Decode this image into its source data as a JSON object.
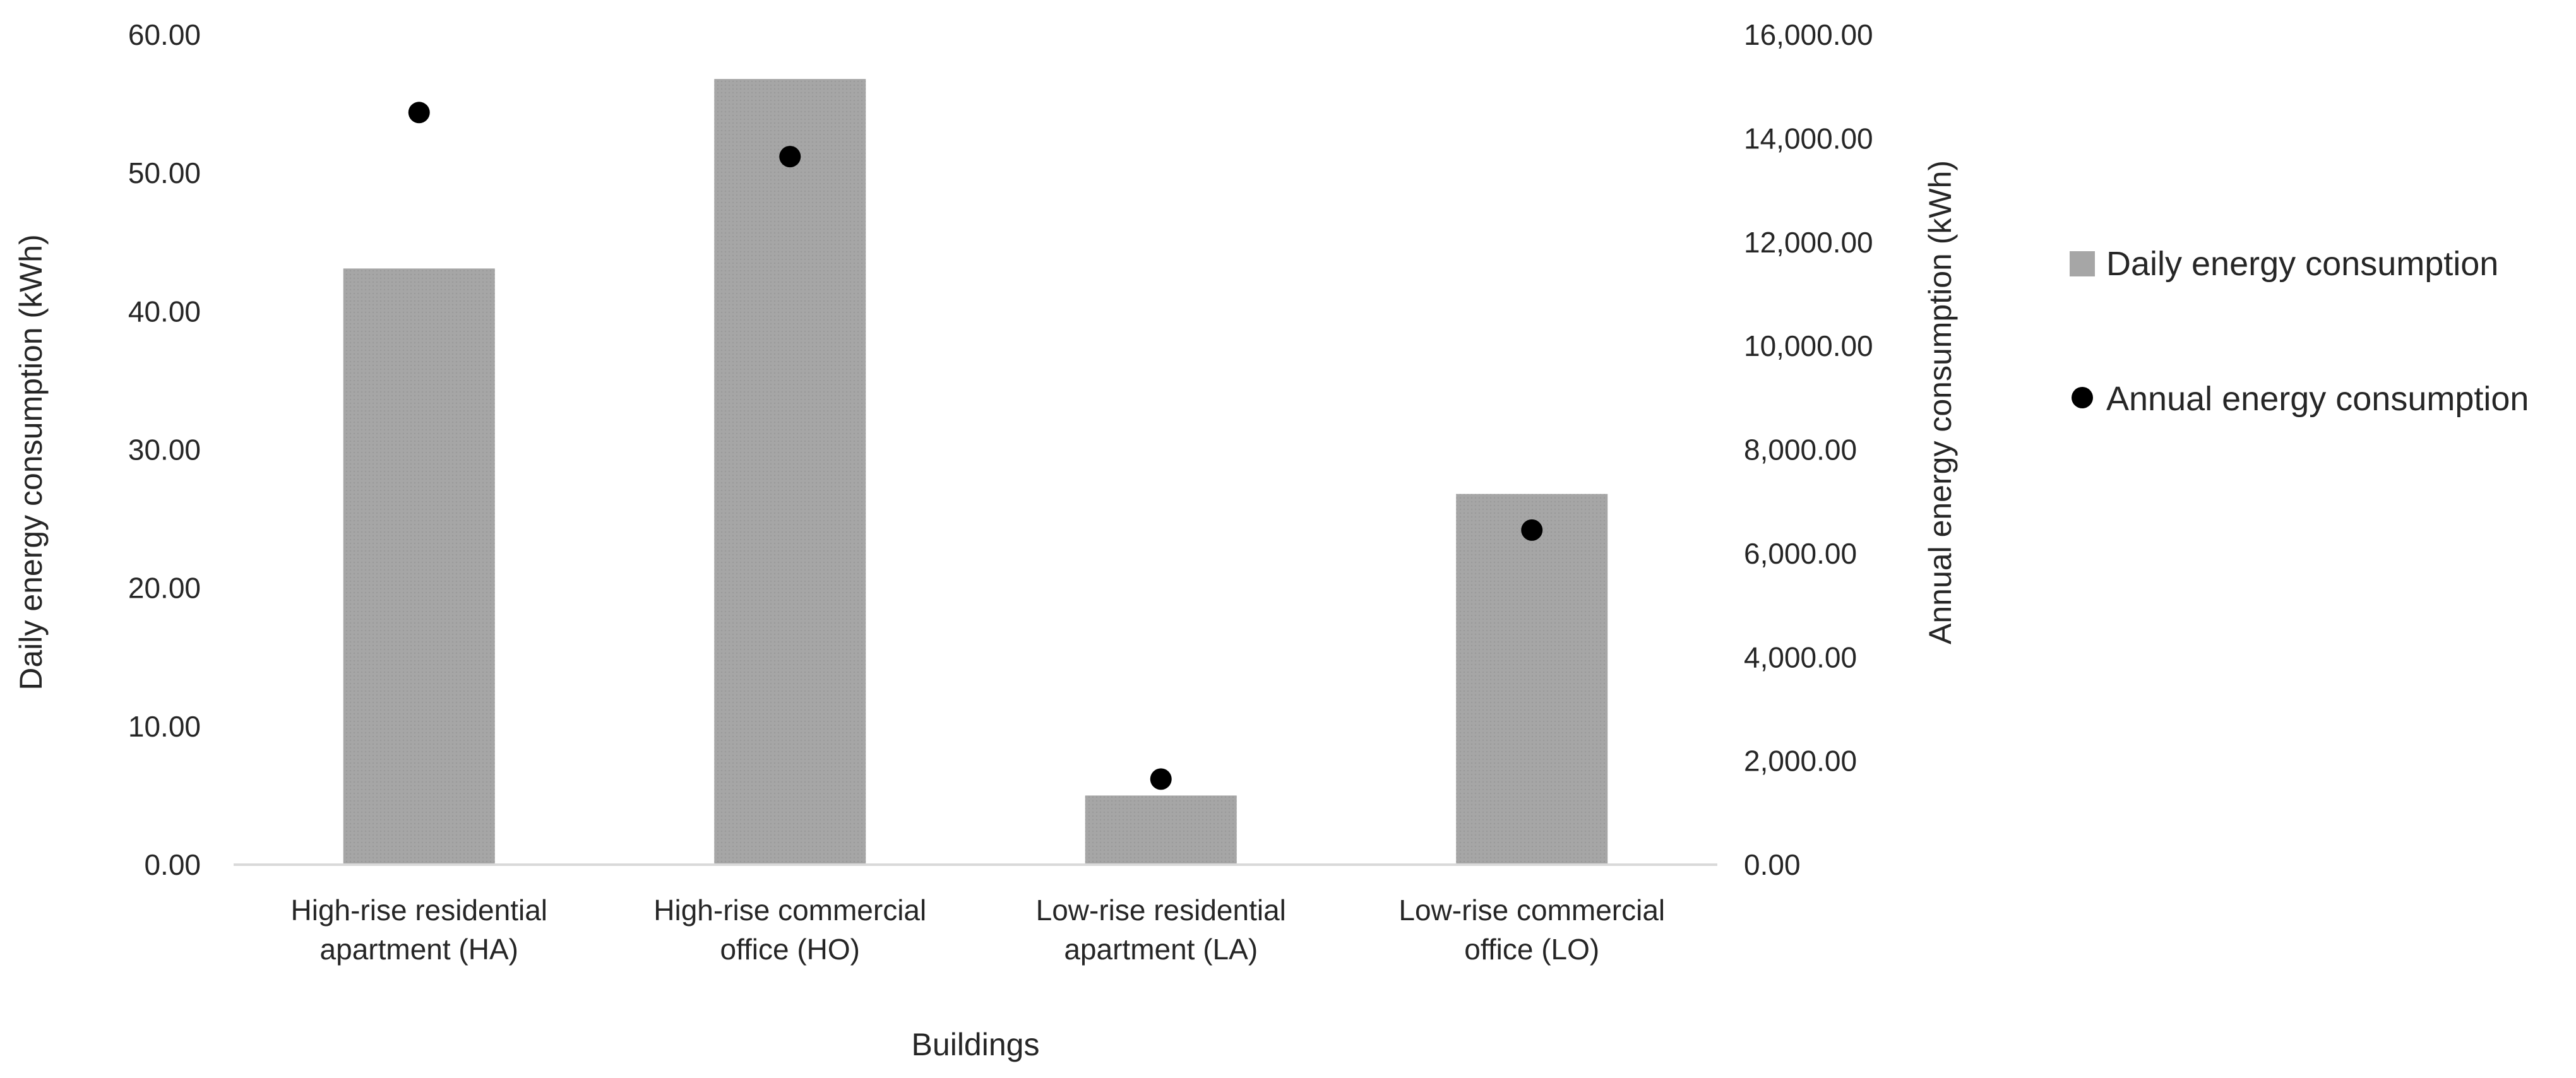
{
  "chart_data": {
    "type": "bar+scatter",
    "categories": [
      [
        "High-rise residential",
        "apartment (HA)"
      ],
      [
        "High-rise commercial",
        "office (HO)"
      ],
      [
        "Low-rise residential",
        "apartment (LA)"
      ],
      [
        "Low-rise commercial",
        "office (LO)"
      ]
    ],
    "series": [
      {
        "name": "Daily energy consumption",
        "kind": "bar",
        "axis": "left",
        "values": [
          43.1,
          56.8,
          5.0,
          26.8
        ]
      },
      {
        "name": "Annual energy consumption",
        "kind": "scatter",
        "axis": "right",
        "values": [
          14500,
          13650,
          1650,
          6450
        ]
      }
    ],
    "xlabel": "Buildings",
    "ylabel_left": "Daily energy consumption (kWh)",
    "ylabel_right": "Annual energy consumption (kWh)",
    "ylim_left": [
      0,
      60
    ],
    "ylim_right": [
      0,
      16000
    ],
    "yticks_left": [
      "0.00",
      "10.00",
      "20.00",
      "30.00",
      "40.00",
      "50.00",
      "60.00"
    ],
    "yticks_right": [
      "0.00",
      "2,000.00",
      "4,000.00",
      "6,000.00",
      "8,000.00",
      "10,000.00",
      "12,000.00",
      "14,000.00",
      "16,000.00"
    ],
    "legend_position": "right",
    "colors": {
      "bar": "#a6a6a6",
      "marker": "#000000",
      "axis": "#d9d9d9",
      "text": "#262626"
    }
  }
}
